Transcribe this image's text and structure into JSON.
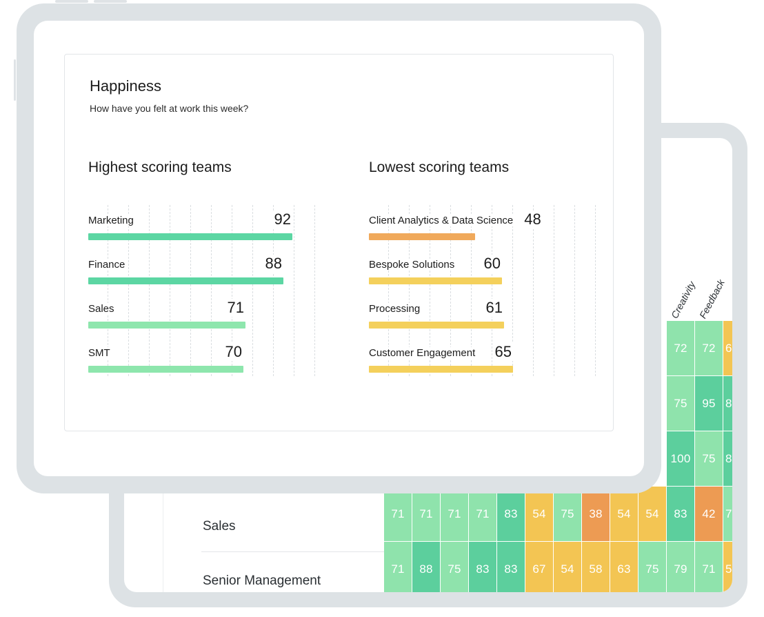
{
  "happiness": {
    "title": "Happiness",
    "subtitle": "How have you felt at work this week?",
    "scale_max": 92,
    "highest": {
      "title": "Highest scoring teams",
      "teams": [
        {
          "name": "Marketing",
          "score": "92",
          "value": 92,
          "color": "#5cd6a3"
        },
        {
          "name": "Finance",
          "score": "88",
          "value": 88,
          "color": "#5cd6a3"
        },
        {
          "name": "Sales",
          "score": "71",
          "value": 71,
          "color": "#8ee6ad"
        },
        {
          "name": "SMT",
          "score": "70",
          "value": 70,
          "color": "#8ee6ad"
        }
      ]
    },
    "lowest": {
      "title": "Lowest scoring teams",
      "teams": [
        {
          "name": "Client Analytics & Data Science",
          "score": "48",
          "value": 48,
          "color": "#f0a95b"
        },
        {
          "name": "Bespoke Solutions",
          "score": "60",
          "value": 60,
          "color": "#f4d05c"
        },
        {
          "name": "Processing",
          "score": "61",
          "value": 61,
          "color": "#f4d05c"
        },
        {
          "name": "Customer Engagement",
          "score": "65",
          "value": 65,
          "color": "#f4d05c"
        }
      ]
    }
  },
  "heatmap": {
    "column_headers": [
      "Creativity",
      "Feedback"
    ],
    "colors": {
      "dark_green": "#5ccf9d",
      "light_green": "#8fe3ac",
      "yellow": "#f3c553",
      "orange": "#ed9b53"
    },
    "rows": [
      {
        "label": "",
        "cells": [
          {
            "v": "72",
            "c": "light_green"
          },
          {
            "v": "72",
            "c": "light_green"
          },
          {
            "v": "6",
            "c": "yellow"
          }
        ]
      },
      {
        "label": "",
        "cells": [
          {
            "v": "75",
            "c": "light_green"
          },
          {
            "v": "95",
            "c": "dark_green"
          },
          {
            "v": "8",
            "c": "dark_green"
          }
        ]
      },
      {
        "label": "",
        "cells": [
          {
            "v": "100",
            "c": "dark_green"
          },
          {
            "v": "75",
            "c": "light_green"
          },
          {
            "v": "8",
            "c": "dark_green"
          }
        ]
      },
      {
        "label": "Sales",
        "cells": [
          {
            "v": "71",
            "c": "light_green"
          },
          {
            "v": "71",
            "c": "light_green"
          },
          {
            "v": "71",
            "c": "light_green"
          },
          {
            "v": "71",
            "c": "light_green"
          },
          {
            "v": "83",
            "c": "dark_green"
          },
          {
            "v": "54",
            "c": "yellow"
          },
          {
            "v": "75",
            "c": "light_green"
          },
          {
            "v": "38",
            "c": "orange"
          },
          {
            "v": "54",
            "c": "yellow"
          },
          {
            "v": "54",
            "c": "yellow"
          },
          {
            "v": "83",
            "c": "dark_green"
          },
          {
            "v": "42",
            "c": "orange"
          },
          {
            "v": "7",
            "c": "light_green"
          }
        ]
      },
      {
        "label": "Senior Management",
        "cells": [
          {
            "v": "71",
            "c": "light_green"
          },
          {
            "v": "88",
            "c": "dark_green"
          },
          {
            "v": "75",
            "c": "light_green"
          },
          {
            "v": "83",
            "c": "dark_green"
          },
          {
            "v": "83",
            "c": "dark_green"
          },
          {
            "v": "67",
            "c": "yellow"
          },
          {
            "v": "54",
            "c": "yellow"
          },
          {
            "v": "58",
            "c": "yellow"
          },
          {
            "v": "63",
            "c": "yellow"
          },
          {
            "v": "75",
            "c": "light_green"
          },
          {
            "v": "79",
            "c": "light_green"
          },
          {
            "v": "71",
            "c": "light_green"
          },
          {
            "v": "5",
            "c": "yellow"
          }
        ]
      }
    ]
  }
}
